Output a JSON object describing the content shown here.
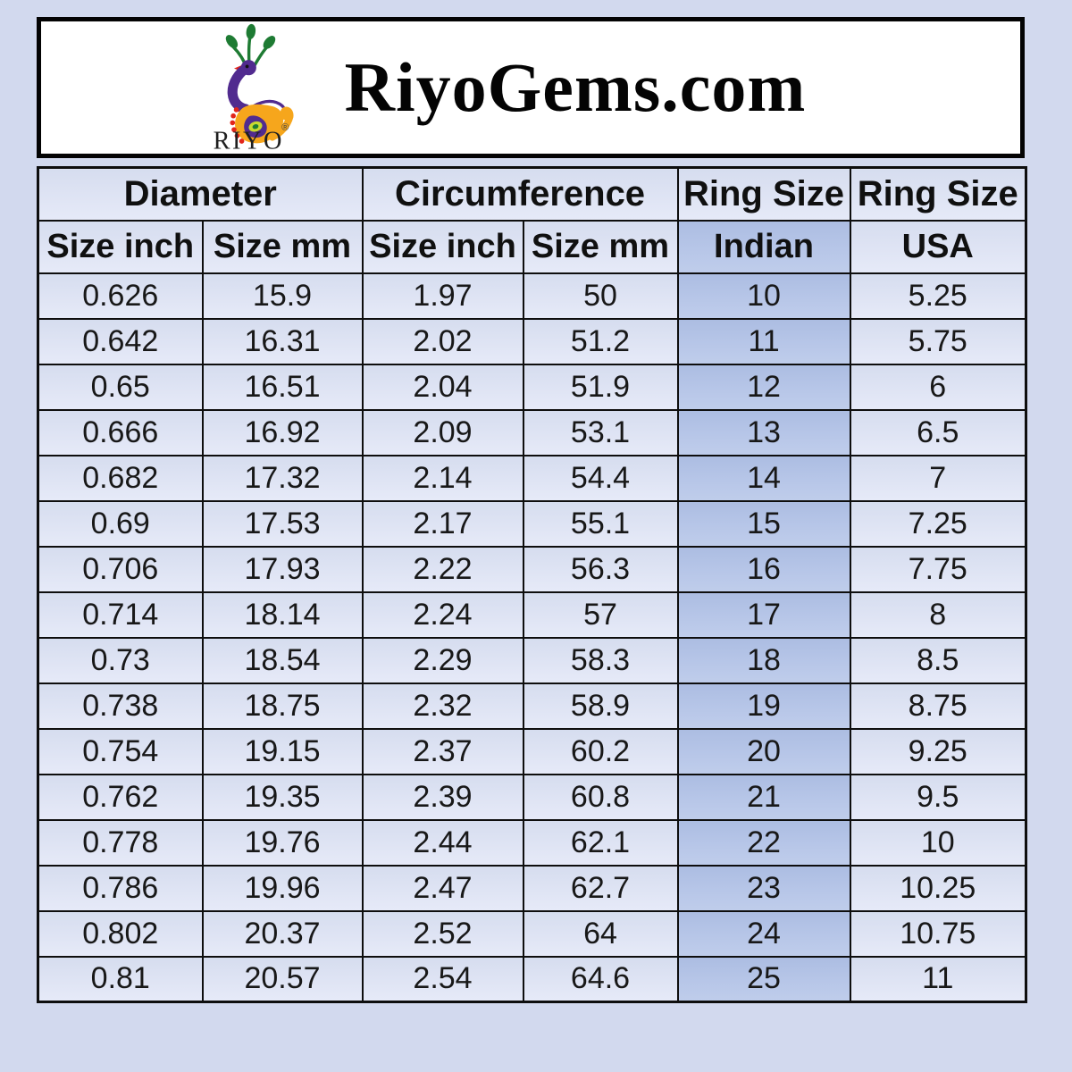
{
  "page": {
    "background_color": "#d2d9ee"
  },
  "header": {
    "title": "RiyoGems.com",
    "logo": {
      "brand": "RIYO",
      "registered_mark": "®"
    }
  },
  "chart_data": {
    "type": "table",
    "title": "RiyoGems.com",
    "column_groups": [
      "Diameter",
      "Circumference",
      "Ring Size",
      "Ring Size"
    ],
    "columns": [
      "Size inch",
      "Size mm",
      "Size inch",
      "Size mm",
      "Indian",
      "USA"
    ],
    "rows": [
      [
        "0.626",
        "15.9",
        "1.97",
        "50",
        "10",
        "5.25"
      ],
      [
        "0.642",
        "16.31",
        "2.02",
        "51.2",
        "11",
        "5.75"
      ],
      [
        "0.65",
        "16.51",
        "2.04",
        "51.9",
        "12",
        "6"
      ],
      [
        "0.666",
        "16.92",
        "2.09",
        "53.1",
        "13",
        "6.5"
      ],
      [
        "0.682",
        "17.32",
        "2.14",
        "54.4",
        "14",
        "7"
      ],
      [
        "0.69",
        "17.53",
        "2.17",
        "55.1",
        "15",
        "7.25"
      ],
      [
        "0.706",
        "17.93",
        "2.22",
        "56.3",
        "16",
        "7.75"
      ],
      [
        "0.714",
        "18.14",
        "2.24",
        "57",
        "17",
        "8"
      ],
      [
        "0.73",
        "18.54",
        "2.29",
        "58.3",
        "18",
        "8.5"
      ],
      [
        "0.738",
        "18.75",
        "2.32",
        "58.9",
        "19",
        "8.75"
      ],
      [
        "0.754",
        "19.15",
        "2.37",
        "60.2",
        "20",
        "9.25"
      ],
      [
        "0.762",
        "19.35",
        "2.39",
        "60.8",
        "21",
        "9.5"
      ],
      [
        "0.778",
        "19.76",
        "2.44",
        "62.1",
        "22",
        "10"
      ],
      [
        "0.786",
        "19.96",
        "2.47",
        "62.7",
        "23",
        "10.25"
      ],
      [
        "0.802",
        "20.37",
        "2.52",
        "64",
        "24",
        "10.75"
      ],
      [
        "0.81",
        "20.57",
        "2.54",
        "64.6",
        "25",
        "11"
      ]
    ]
  },
  "colors": {
    "page_background": "#d2d9ee",
    "cell_background": "#dde3f3",
    "indian_column_background": "#b5c4e7",
    "table_border": "#0e0e0e",
    "text": "#181818",
    "logo_green": "#1e7b33",
    "logo_purple": "#512b8f",
    "logo_orange": "#f6a61c",
    "logo_red": "#e1251b",
    "logo_eye_green": "#c8d930"
  }
}
